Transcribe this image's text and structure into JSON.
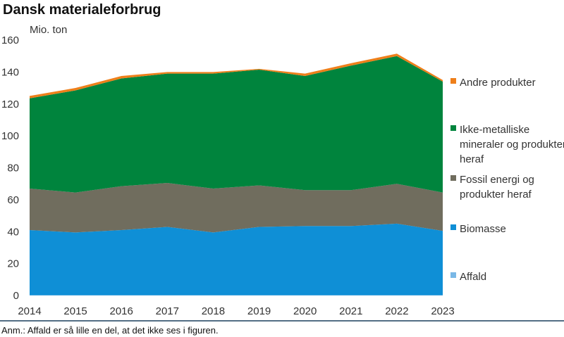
{
  "chart_data": {
    "type": "area",
    "title": "Dansk materialeforbrug",
    "ylabel": "Mio. ton",
    "xlabel": "",
    "x": [
      2014,
      2015,
      2016,
      2017,
      2018,
      2019,
      2020,
      2021,
      2022,
      2023
    ],
    "ylim": [
      0,
      160
    ],
    "yticks": [
      0,
      20,
      40,
      60,
      80,
      100,
      120,
      140,
      160
    ],
    "stacked": true,
    "grid": false,
    "legend_position": "right",
    "series": [
      {
        "name": "Affald",
        "color": "#7ab8e6",
        "values": [
          0.2,
          0.2,
          0.2,
          0.2,
          0.2,
          0.2,
          0.2,
          0.2,
          0.2,
          0.2
        ]
      },
      {
        "name": "Biomasse",
        "color": "#0f8fd6",
        "values": [
          40.8,
          39.3,
          40.8,
          42.8,
          39.3,
          42.8,
          43.3,
          43.3,
          44.8,
          40.3
        ]
      },
      {
        "name": "Fossil energi og\nprodukter heraf",
        "color": "#706d5e",
        "values": [
          26,
          25,
          27.5,
          27.5,
          27.5,
          26,
          22.5,
          22.5,
          25,
          24
        ]
      },
      {
        "name": "Ikke-metalliske\nmineraler og produkter\nheraf",
        "color": "#00843d",
        "values": [
          56.5,
          64,
          67.5,
          68.5,
          72,
          72.5,
          71.5,
          78,
          80,
          69.5
        ]
      },
      {
        "name": "Andre produkter",
        "color": "#ee7f1a",
        "values": [
          1.5,
          1.5,
          1.5,
          1,
          1,
          0.5,
          1.5,
          1.5,
          1.5,
          1
        ]
      }
    ],
    "legend_order": [
      "Andre produkter",
      "Ikke-metalliske\nmineraler og produkter\nheraf",
      "Fossil energi og\nprodukter heraf",
      "Biomasse",
      "Affald"
    ]
  },
  "note": "Anm.: Affald er så lille en del, at det ikke ses i figuren.",
  "colors": {
    "rule": "#1a3e5c",
    "axis": "#999999"
  }
}
